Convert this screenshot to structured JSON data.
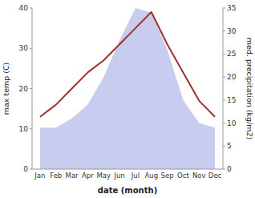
{
  "chart_data": {
    "type": "line",
    "categories": [
      "Jan",
      "Feb",
      "Mar",
      "Apr",
      "May",
      "Jun",
      "Jul",
      "Aug",
      "Sep",
      "Oct",
      "Nov",
      "Dec"
    ],
    "series": [
      {
        "type": "area",
        "axis": "y2",
        "color": "#b0b8e8",
        "values": [
          9,
          9,
          11,
          14,
          20,
          28,
          35,
          34,
          26,
          15,
          10,
          9
        ]
      },
      {
        "type": "line",
        "color": "#a03030",
        "values": [
          13,
          16,
          20,
          24,
          27,
          31,
          35,
          39,
          31,
          24,
          17,
          13
        ]
      }
    ],
    "x_label": "date (month)",
    "y_label": "max temp (C)",
    "y2_label": "med. precipitation (kg/m2)",
    "ylim": [
      0,
      40
    ],
    "yticks": [
      0,
      10,
      20,
      30,
      40
    ],
    "y2lim": [
      0,
      35
    ],
    "y2ticks": [
      0,
      5,
      10,
      15,
      20,
      25,
      30,
      35
    ],
    "grid": false
  }
}
